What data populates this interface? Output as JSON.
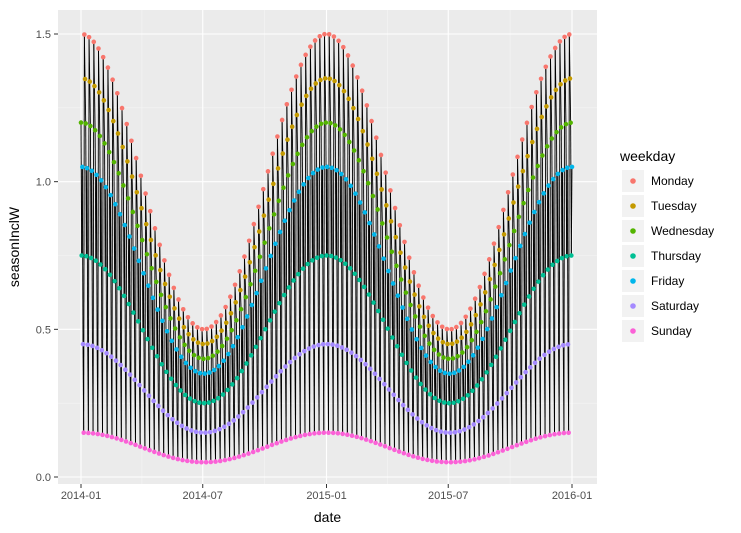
{
  "chart_data": {
    "type": "scatter",
    "title": "",
    "xlabel": "date",
    "ylabel": "seasonInclW",
    "x_range": [
      "2014-01",
      "2016-01"
    ],
    "ylim": [
      0,
      1.5
    ],
    "x_ticks": [
      "2014-01",
      "2014-07",
      "2015-01",
      "2015-07",
      "2016-01"
    ],
    "y_ticks": [
      "0.0",
      "0.5",
      "1.0",
      "1.5"
    ],
    "grid": true,
    "daily_vertical_segments": true,
    "legend": {
      "title": "weekday",
      "position": "right"
    },
    "series": [
      {
        "name": "Monday",
        "color": "#F8766D",
        "max": 1.5,
        "min": 0.5
      },
      {
        "name": "Tuesday",
        "color": "#C49A00",
        "max": 1.35,
        "min": 0.45
      },
      {
        "name": "Wednesday",
        "color": "#53B400",
        "max": 1.2,
        "min": 0.4
      },
      {
        "name": "Thursday",
        "color": "#00C094",
        "max": 0.75,
        "min": 0.25
      },
      {
        "name": "Friday",
        "color": "#00B6EB",
        "max": 1.05,
        "min": 0.35
      },
      {
        "name": "Saturday",
        "color": "#A58AFF",
        "max": 0.45,
        "min": 0.15
      },
      {
        "name": "Sunday",
        "color": "#FB61D7",
        "max": 0.15,
        "min": 0.05
      }
    ],
    "weekday_order": [
      "Monday",
      "Tuesday",
      "Wednesday",
      "Thursday",
      "Friday",
      "Saturday",
      "Sunday"
    ],
    "start_weekday": "Wednesday",
    "seasonal_peak_months": [
      "2014-01",
      "2015-01",
      "2016-01"
    ],
    "seasonal_trough_months": [
      "2014-07",
      "2015-07"
    ]
  }
}
